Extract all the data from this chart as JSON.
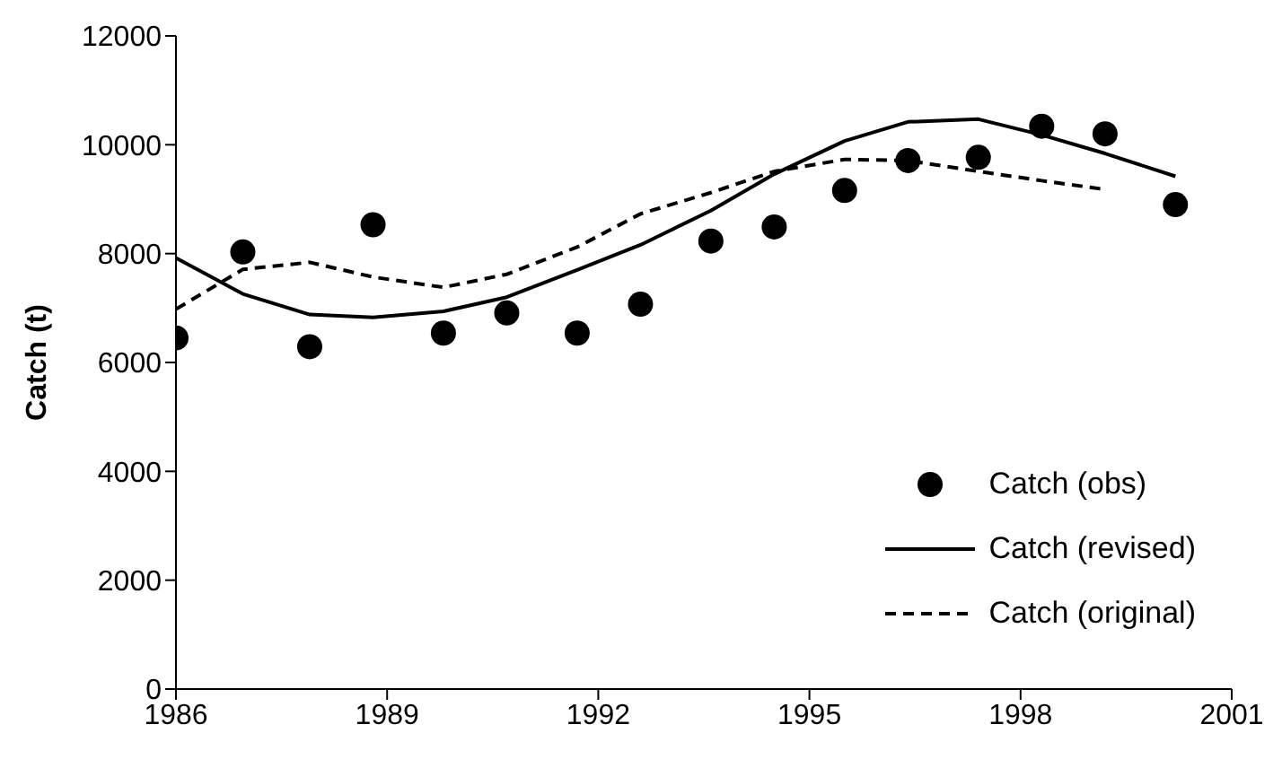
{
  "chart_data": {
    "type": "line",
    "ylabel": "Catch (t)",
    "xlim": [
      1986,
      2001
    ],
    "xticks": [
      1986,
      1989,
      1992,
      1995,
      1998,
      2001
    ],
    "ylim": [
      0,
      12000
    ],
    "yticks": [
      0,
      2000,
      4000,
      6000,
      8000,
      10000,
      12000
    ],
    "grid": false,
    "legend": "bottom right",
    "series": [
      {
        "name": "Catch (obs)",
        "type": "scatter",
        "marker": "circle",
        "color": "#000000",
        "x": [
          1986,
          1986.95,
          1987.9,
          1988.8,
          1989.8,
          1990.7,
          1991.7,
          1992.6,
          1993.6,
          1994.5,
          1995.5,
          1996.4,
          1997.4,
          1998.3,
          1999.2,
          2000.2
        ],
        "values": [
          6450,
          8030,
          6290,
          8530,
          6540,
          6910,
          6540,
          7070,
          8230,
          8490,
          9160,
          9710,
          9770,
          10340,
          10200,
          8900
        ]
      },
      {
        "name": "Catch (revised)",
        "marker": "none",
        "line_style": "solid",
        "color": "#000000",
        "x": [
          1986,
          1986.95,
          1987.9,
          1988.8,
          1989.8,
          1990.7,
          1991.7,
          1992.6,
          1993.6,
          1994.5,
          1995.5,
          1996.4,
          1997.4,
          1998.3,
          1999.2,
          2000.2
        ],
        "values": [
          7920,
          7260,
          6880,
          6830,
          6940,
          7200,
          7700,
          8160,
          8790,
          9460,
          10070,
          10420,
          10470,
          10180,
          9840,
          9420
        ]
      },
      {
        "name": "Catch (original)",
        "marker": "none",
        "line_style": "dashed",
        "color": "#000000",
        "x": [
          1986,
          1986.95,
          1987.9,
          1988.8,
          1989.8,
          1990.7,
          1991.7,
          1992.6,
          1993.6,
          1994.5,
          1995.5,
          1996.4,
          1997.4,
          1998.3,
          1999.2
        ],
        "values": [
          6980,
          7710,
          7840,
          7570,
          7380,
          7620,
          8120,
          8730,
          9120,
          9510,
          9730,
          9710,
          9510,
          9340,
          9180
        ]
      }
    ]
  }
}
